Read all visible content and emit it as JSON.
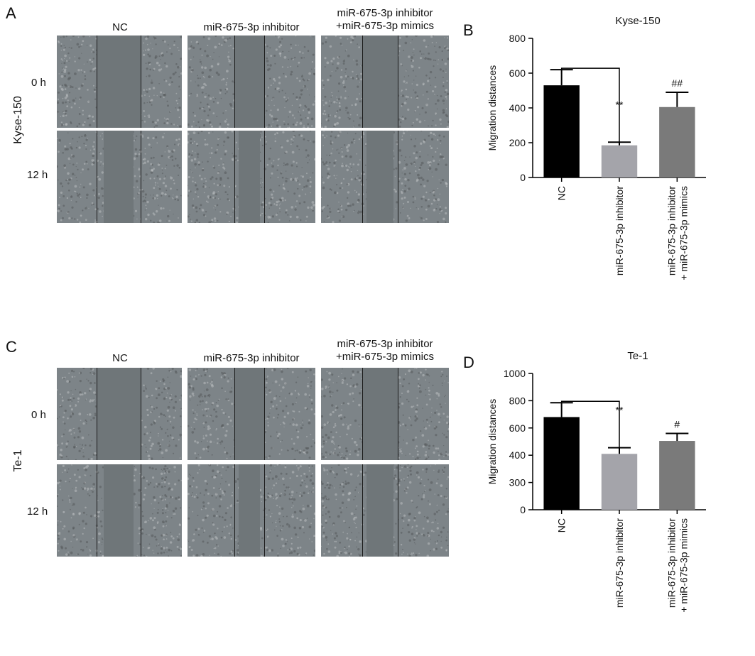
{
  "panels": {
    "A": {
      "letter": "A",
      "cell_line": "Kyse-150",
      "columns": [
        "NC",
        "miR-675-3p inhibitor",
        "miR-675-3p inhibitor\n+miR-675-3p mimics"
      ],
      "rows": [
        "0 h",
        "12 h"
      ]
    },
    "C": {
      "letter": "C",
      "cell_line": "Te-1",
      "columns": [
        "NC",
        "miR-675-3p inhibitor",
        "miR-675-3p inhibitor\n+miR-675-3p mimics"
      ],
      "rows": [
        "0 h",
        "12 h"
      ]
    },
    "B": {
      "letter": "B"
    },
    "D": {
      "letter": "D"
    }
  },
  "chart_data": [
    {
      "type": "bar",
      "title": "Kyse-150",
      "ylabel": "Migration distances",
      "xlabel": "",
      "categories": [
        "NC",
        "miR-675-3p inhibitor",
        "miR-675-3p inhibitor\n+ miR-675-3p mimics"
      ],
      "values": [
        530,
        185,
        405
      ],
      "errors": [
        90,
        18,
        85
      ],
      "colors": [
        "#000000",
        "#a4a4aa",
        "#7a7a7a"
      ],
      "significance": [
        "",
        "**",
        "##"
      ],
      "ylim": [
        0,
        800
      ],
      "yticks": [
        0,
        200,
        400,
        600,
        800
      ],
      "comparison_bracket": [
        "NC",
        "miR-675-3p inhibitor"
      ]
    },
    {
      "type": "bar",
      "title": "Te-1",
      "ylabel": "Migration distances",
      "xlabel": "",
      "categories": [
        "NC",
        "miR-675-3p inhibitor",
        "miR-675-3p inhibitor\n+ miR-675-3p mimics"
      ],
      "values": [
        680,
        410,
        505
      ],
      "errors": [
        105,
        45,
        55
      ],
      "colors": [
        "#000000",
        "#a4a4aa",
        "#7a7a7a"
      ],
      "significance": [
        "",
        "**",
        "#"
      ],
      "ylim": [
        0,
        1000
      ],
      "yticks": [
        0,
        300,
        400,
        600,
        800,
        1000
      ],
      "comparison_bracket": [
        "NC",
        "miR-675-3p inhibitor"
      ]
    }
  ]
}
